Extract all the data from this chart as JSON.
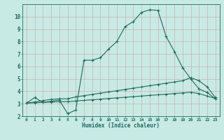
{
  "title": "",
  "xlabel": "Humidex (Indice chaleur)",
  "bg_color": "#c8eae4",
  "grid_color": "#aacccc",
  "line_color": "#1a6b5e",
  "xlim": [
    -0.5,
    23.5
  ],
  "ylim": [
    2,
    11
  ],
  "xticks": [
    0,
    1,
    2,
    3,
    4,
    5,
    6,
    7,
    8,
    9,
    10,
    11,
    12,
    13,
    14,
    15,
    16,
    17,
    18,
    19,
    20,
    21,
    22,
    23
  ],
  "yticks": [
    2,
    3,
    4,
    5,
    6,
    7,
    8,
    9,
    10
  ],
  "line1_x": [
    0,
    1,
    2,
    3,
    4,
    5,
    6,
    7,
    8,
    9,
    10,
    11,
    12,
    13,
    14,
    15,
    16,
    17,
    18,
    19,
    20,
    21,
    22,
    23
  ],
  "line1_y": [
    3.05,
    3.5,
    3.1,
    3.2,
    3.3,
    2.2,
    2.5,
    6.5,
    6.5,
    6.7,
    7.4,
    8.0,
    9.2,
    9.6,
    10.35,
    10.55,
    10.5,
    8.4,
    7.2,
    5.9,
    5.0,
    4.2,
    3.9,
    3.4
  ],
  "line2_x": [
    0,
    1,
    2,
    3,
    4,
    5,
    6,
    7,
    8,
    9,
    10,
    11,
    12,
    13,
    14,
    15,
    16,
    17,
    18,
    19,
    20,
    21,
    22,
    23
  ],
  "line2_y": [
    3.05,
    3.15,
    3.25,
    3.35,
    3.4,
    3.4,
    3.55,
    3.65,
    3.75,
    3.85,
    3.95,
    4.05,
    4.15,
    4.25,
    4.35,
    4.45,
    4.55,
    4.65,
    4.75,
    4.85,
    5.1,
    4.85,
    4.35,
    3.5
  ],
  "line3_x": [
    0,
    1,
    2,
    3,
    4,
    5,
    6,
    7,
    8,
    9,
    10,
    11,
    12,
    13,
    14,
    15,
    16,
    17,
    18,
    19,
    20,
    21,
    22,
    23
  ],
  "line3_y": [
    3.05,
    3.08,
    3.11,
    3.14,
    3.17,
    3.17,
    3.22,
    3.27,
    3.32,
    3.37,
    3.42,
    3.47,
    3.52,
    3.57,
    3.62,
    3.67,
    3.72,
    3.77,
    3.82,
    3.87,
    3.92,
    3.82,
    3.62,
    3.42
  ]
}
